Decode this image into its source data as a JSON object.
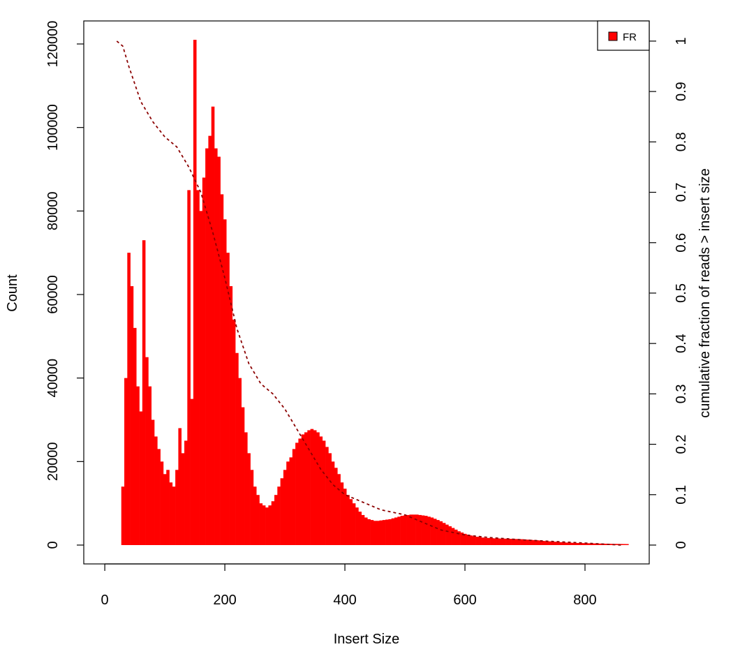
{
  "chart_data": {
    "type": "histogram",
    "xlabel": "Insert Size",
    "ylabel": "Count",
    "y2label": "cumulative fraction of reads > insert size",
    "xlim": [
      -35,
      907
    ],
    "xticks": [
      0,
      200,
      400,
      600,
      800
    ],
    "ylim": [
      -4513,
      125515
    ],
    "yticks": [
      0,
      20000,
      40000,
      60000,
      80000,
      100000,
      120000
    ],
    "y2lim": [
      -0.0374,
      1.04
    ],
    "y2ticks": [
      0,
      0.1,
      0.2,
      0.3,
      0.4,
      0.5,
      0.6,
      0.7,
      0.8,
      0.9,
      1
    ],
    "legend": "top-right",
    "x": [
      20,
      25,
      30,
      35,
      40,
      45,
      50,
      55,
      60,
      65,
      70,
      75,
      80,
      85,
      90,
      95,
      100,
      105,
      110,
      115,
      120,
      125,
      130,
      135,
      140,
      145,
      150,
      155,
      160,
      165,
      170,
      175,
      180,
      185,
      190,
      195,
      200,
      205,
      210,
      215,
      220,
      225,
      230,
      235,
      240,
      245,
      250,
      255,
      260,
      265,
      270,
      275,
      280,
      285,
      290,
      295,
      300,
      305,
      310,
      315,
      320,
      325,
      330,
      335,
      340,
      345,
      350,
      355,
      360,
      365,
      370,
      375,
      380,
      385,
      390,
      395,
      400,
      405,
      410,
      415,
      420,
      425,
      430,
      435,
      440,
      445,
      450,
      455,
      460,
      465,
      470,
      475,
      480,
      485,
      490,
      495,
      500,
      505,
      510,
      515,
      520,
      525,
      530,
      535,
      540,
      545,
      550,
      555,
      560,
      565,
      570,
      575,
      580,
      585,
      590,
      595,
      600,
      605,
      610,
      615,
      620,
      625,
      630,
      635,
      640,
      645,
      650,
      655,
      660,
      665,
      670,
      675,
      680,
      685,
      690,
      695,
      700,
      705,
      710,
      715,
      720,
      725,
      730,
      735,
      740,
      745,
      750,
      755,
      760,
      765,
      770,
      775,
      780,
      785,
      790,
      795,
      800,
      805,
      810,
      815,
      820,
      825,
      830,
      835,
      840,
      845,
      850,
      855,
      860,
      865,
      870
    ],
    "series": [
      {
        "name": "FR",
        "color": "#ff0000",
        "values": [
          0,
          0,
          14000,
          40000,
          70000,
          62000,
          52000,
          38000,
          32000,
          73000,
          45000,
          38000,
          30000,
          26000,
          23000,
          20000,
          17000,
          18000,
          15000,
          14000,
          18000,
          28000,
          22000,
          25000,
          85000,
          35000,
          121000,
          85000,
          80000,
          88000,
          95000,
          98000,
          105000,
          95000,
          93000,
          84000,
          78000,
          70000,
          62000,
          54000,
          46000,
          40000,
          33000,
          27000,
          22000,
          18000,
          14000,
          12000,
          10000,
          9500,
          9000,
          9500,
          10500,
          12000,
          14000,
          16000,
          18000,
          20000,
          21000,
          23000,
          24500,
          25500,
          26500,
          27000,
          27500,
          27800,
          27500,
          27000,
          26000,
          25000,
          23500,
          22000,
          20000,
          18500,
          17000,
          15000,
          13500,
          12000,
          11000,
          10000,
          9000,
          8000,
          7200,
          6600,
          6200,
          6000,
          5800,
          5800,
          5900,
          6000,
          6100,
          6200,
          6400,
          6600,
          6800,
          7000,
          7100,
          7200,
          7300,
          7300,
          7300,
          7200,
          7100,
          7000,
          6800,
          6600,
          6300,
          6000,
          5700,
          5300,
          4900,
          4500,
          4100,
          3700,
          3300,
          3000,
          2700,
          2500,
          2300,
          2100,
          2000,
          1900,
          1800,
          1700,
          1700,
          1650,
          1600,
          1600,
          1550,
          1550,
          1500,
          1500,
          1500,
          1450,
          1400,
          1400,
          1350,
          1300,
          1250,
          1200,
          1150,
          1100,
          1000,
          950,
          900,
          850,
          800,
          750,
          700,
          650,
          600,
          580,
          550,
          520,
          500,
          480,
          460,
          440,
          420,
          400,
          380,
          360,
          340,
          320,
          300,
          290,
          280,
          270,
          260,
          250,
          240
        ]
      },
      {
        "color": "#8b0000",
        "axis": "y2",
        "dashed": true,
        "x": [
          20,
          30,
          40,
          60,
          80,
          100,
          120,
          140,
          160,
          180,
          200,
          220,
          240,
          260,
          280,
          300,
          320,
          340,
          360,
          380,
          400,
          420,
          440,
          460,
          480,
          500,
          520,
          540,
          560,
          580,
          600,
          640,
          700,
          800,
          860
        ],
        "values": [
          1,
          0.99,
          0.95,
          0.88,
          0.84,
          0.81,
          0.79,
          0.75,
          0.7,
          0.62,
          0.53,
          0.43,
          0.36,
          0.32,
          0.3,
          0.27,
          0.23,
          0.19,
          0.15,
          0.12,
          0.1,
          0.09,
          0.08,
          0.07,
          0.065,
          0.06,
          0.05,
          0.04,
          0.03,
          0.025,
          0.02,
          0.015,
          0.01,
          0.004,
          0
        ]
      }
    ]
  }
}
